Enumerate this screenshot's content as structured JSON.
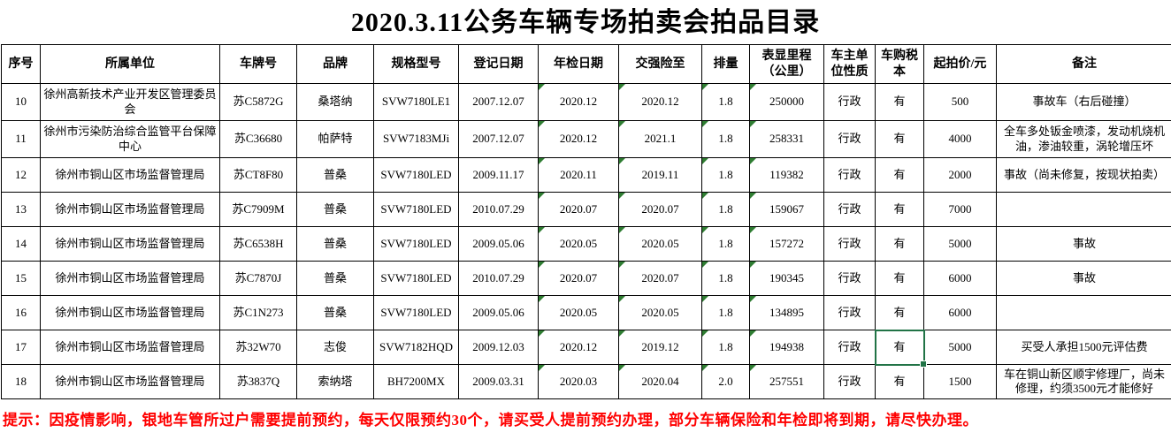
{
  "title": "2020.3.11公务车辆专场拍卖会拍品目录",
  "table": {
    "columns": [
      {
        "key": "seq",
        "label": "序号"
      },
      {
        "key": "unit",
        "label": "所属单位"
      },
      {
        "key": "plate",
        "label": "车牌号"
      },
      {
        "key": "brand",
        "label": "品牌"
      },
      {
        "key": "model",
        "label": "规格型号"
      },
      {
        "key": "reg_date",
        "label": "登记日期"
      },
      {
        "key": "inspection_date",
        "label": "年检日期"
      },
      {
        "key": "insurance_until",
        "label": "交强险至"
      },
      {
        "key": "displacement",
        "label": "排量"
      },
      {
        "key": "mileage",
        "label": "表显里程（公里）"
      },
      {
        "key": "owner_type",
        "label": "车主单位性质"
      },
      {
        "key": "tax_book",
        "label": "车购税本"
      },
      {
        "key": "start_price",
        "label": "起拍价/元"
      },
      {
        "key": "remark",
        "label": "备注"
      }
    ],
    "rows": [
      {
        "seq": "10",
        "unit": "徐州高新技术产业开发区管理委员会",
        "plate": "苏C5872G",
        "brand": "桑塔纳",
        "model": "SVW7180LE1",
        "reg_date": "2007.12.07",
        "inspection_date": "2020.12",
        "insurance_until": "2020.12",
        "displacement": "1.8",
        "mileage": "250000",
        "owner_type": "行政",
        "tax_book": "有",
        "start_price": "500",
        "remark": "事故车（右后碰撞）"
      },
      {
        "seq": "11",
        "unit": "徐州市污染防治综合监管平台保障中心",
        "plate": "苏C36680",
        "brand": "帕萨特",
        "model": "SVW7183MJi",
        "reg_date": "2007.12.07",
        "inspection_date": "2020.12",
        "insurance_until": "2021.1",
        "displacement": "1.8",
        "mileage": "258331",
        "owner_type": "行政",
        "tax_book": "有",
        "start_price": "4000",
        "remark": "全车多处钣金喷漆，发动机烧机油，渗油较重，涡轮增压坏"
      },
      {
        "seq": "12",
        "unit": "徐州市铜山区市场监督管理局",
        "plate": "苏CT8F80",
        "brand": "普桑",
        "model": "SVW7180LED",
        "reg_date": "2009.11.17",
        "inspection_date": "2020.11",
        "insurance_until": "2019.11",
        "displacement": "1.8",
        "mileage": "119382",
        "owner_type": "行政",
        "tax_book": "有",
        "start_price": "2000",
        "remark": "事故（尚未修复，按现状拍卖）"
      },
      {
        "seq": "13",
        "unit": "徐州市铜山区市场监督管理局",
        "plate": "苏C7909M",
        "brand": "普桑",
        "model": "SVW7180LED",
        "reg_date": "2010.07.29",
        "inspection_date": "2020.07",
        "insurance_until": "2020.07",
        "displacement": "1.8",
        "mileage": "159067",
        "owner_type": "行政",
        "tax_book": "有",
        "start_price": "7000",
        "remark": ""
      },
      {
        "seq": "14",
        "unit": "徐州市铜山区市场监督管理局",
        "plate": "苏C6538H",
        "brand": "普桑",
        "model": "SVW7180LED",
        "reg_date": "2009.05.06",
        "inspection_date": "2020.05",
        "insurance_until": "2020.05",
        "displacement": "1.8",
        "mileage": "157272",
        "owner_type": "行政",
        "tax_book": "有",
        "start_price": "5000",
        "remark": "事故"
      },
      {
        "seq": "15",
        "unit": "徐州市铜山区市场监督管理局",
        "plate": "苏C7870J",
        "brand": "普桑",
        "model": "SVW7180LED",
        "reg_date": "2010.07.29",
        "inspection_date": "2020.07",
        "insurance_until": "2020.07",
        "displacement": "1.8",
        "mileage": "190345",
        "owner_type": "行政",
        "tax_book": "有",
        "start_price": "6000",
        "remark": "事故"
      },
      {
        "seq": "16",
        "unit": "徐州市铜山区市场监督管理局",
        "plate": "苏C1N273",
        "brand": "普桑",
        "model": "SVW7180LED",
        "reg_date": "2009.05.06",
        "inspection_date": "2020.05",
        "insurance_until": "2020.05",
        "displacement": "1.8",
        "mileage": "134895",
        "owner_type": "行政",
        "tax_book": "有",
        "start_price": "6000",
        "remark": ""
      },
      {
        "seq": "17",
        "unit": "徐州市铜山区市场监督管理局",
        "plate": "苏32W70",
        "brand": "志俊",
        "model": "SVW7182HQD",
        "reg_date": "2009.12.03",
        "inspection_date": "2020.12",
        "insurance_until": "2019.12",
        "displacement": "1.8",
        "mileage": "194938",
        "owner_type": "行政",
        "tax_book": "有",
        "start_price": "5000",
        "remark": "买受人承担1500元评估费"
      },
      {
        "seq": "18",
        "unit": "徐州市铜山区市场监督管理局",
        "plate": "苏3837Q",
        "brand": "索纳塔",
        "model": "BH7200MX",
        "reg_date": "2009.03.31",
        "inspection_date": "2020.03",
        "insurance_until": "2020.04",
        "displacement": "2.0",
        "mileage": "257551",
        "owner_type": "行政",
        "tax_book": "有",
        "start_price": "1500",
        "remark": "车在铜山新区顺宇修理厂，尚未修理，约须3500元才能修好"
      }
    ],
    "error_marker_columns": [
      "inspection_date",
      "insurance_until",
      "displacement",
      "mileage"
    ],
    "selection": {
      "row_seq": "17",
      "column_key": "tax_book"
    }
  },
  "footer_note": "提示：因疫情影响，银地车管所过户需要提前预约，每天仅限预约30个，请买受人提前预约办理，部分车辆保险和年检即将到期，请尽快办理。",
  "colors": {
    "grid_line": "#000000",
    "selection_green": "#217346",
    "error_triangle_green": "#2f7d32",
    "note_red": "#ff0000",
    "text": "#000000",
    "background": "#ffffff"
  }
}
